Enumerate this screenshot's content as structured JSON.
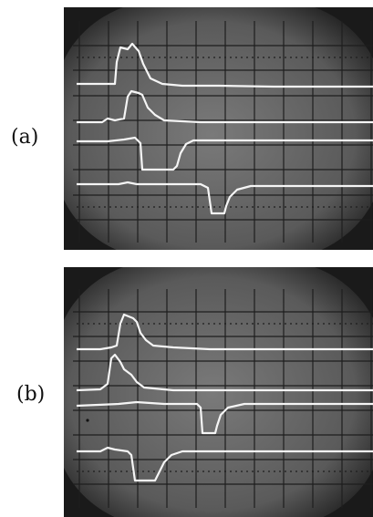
{
  "figure": {
    "panels": [
      {
        "label": "(a)",
        "traces": 4
      },
      {
        "label": "(b)",
        "traces": 4
      }
    ]
  },
  "colors": {
    "background": "#ffffff",
    "label_text": "#111111",
    "screen_center": "#6f6f6f",
    "screen_edge": "#1c1c1c",
    "graticule": "#1e1e1e",
    "trace": "#f5f5f5"
  }
}
